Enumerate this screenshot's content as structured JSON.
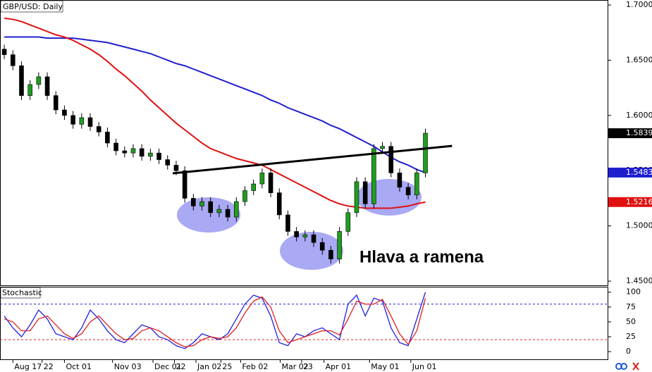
{
  "chart_data": [
    {
      "type": "candlestick",
      "title": "GBP/USD: Daily",
      "open": [
        1.66,
        1.655,
        1.645,
        1.618,
        1.628,
        1.635,
        1.618,
        1.605,
        1.6,
        1.592,
        1.598,
        1.59,
        1.585,
        1.575,
        1.568,
        1.566,
        1.57,
        1.563,
        1.566,
        1.56,
        1.555,
        1.55,
        1.525,
        1.518,
        1.522,
        1.512,
        1.515,
        1.508,
        1.522,
        1.532,
        1.538,
        1.548,
        1.53,
        1.51,
        1.495,
        1.49,
        1.492,
        1.485,
        1.478,
        1.47,
        1.495,
        1.512,
        1.54,
        1.52,
        1.57,
        1.572,
        1.548,
        1.535,
        1.528,
        1.548
      ],
      "high": [
        1.664,
        1.659,
        1.649,
        1.632,
        1.639,
        1.639,
        1.622,
        1.609,
        1.604,
        1.602,
        1.602,
        1.594,
        1.589,
        1.579,
        1.572,
        1.574,
        1.574,
        1.57,
        1.57,
        1.564,
        1.559,
        1.554,
        1.529,
        1.526,
        1.526,
        1.519,
        1.519,
        1.526,
        1.536,
        1.542,
        1.552,
        1.552,
        1.534,
        1.514,
        1.499,
        1.496,
        1.496,
        1.489,
        1.482,
        1.499,
        1.516,
        1.544,
        1.544,
        1.574,
        1.576,
        1.576,
        1.552,
        1.539,
        1.552,
        1.588
      ],
      "low": [
        1.651,
        1.641,
        1.614,
        1.614,
        1.624,
        1.614,
        1.601,
        1.596,
        1.588,
        1.588,
        1.586,
        1.581,
        1.571,
        1.564,
        1.562,
        1.562,
        1.559,
        1.559,
        1.556,
        1.551,
        1.546,
        1.521,
        1.514,
        1.514,
        1.508,
        1.508,
        1.504,
        1.504,
        1.518,
        1.528,
        1.534,
        1.526,
        1.506,
        1.491,
        1.486,
        1.486,
        1.481,
        1.474,
        1.466,
        1.466,
        1.491,
        1.508,
        1.516,
        1.516,
        1.566,
        1.544,
        1.531,
        1.524,
        1.524,
        1.544
      ],
      "close": [
        1.655,
        1.645,
        1.618,
        1.628,
        1.635,
        1.618,
        1.605,
        1.6,
        1.592,
        1.598,
        1.59,
        1.585,
        1.575,
        1.568,
        1.566,
        1.57,
        1.563,
        1.566,
        1.56,
        1.555,
        1.55,
        1.525,
        1.518,
        1.522,
        1.512,
        1.515,
        1.508,
        1.522,
        1.532,
        1.538,
        1.548,
        1.53,
        1.51,
        1.495,
        1.49,
        1.492,
        1.485,
        1.478,
        1.47,
        1.495,
        1.512,
        1.54,
        1.52,
        1.57,
        1.572,
        1.548,
        1.535,
        1.528,
        1.548,
        1.5839
      ],
      "up_color": "#1f9e1f",
      "down_color": "#000000",
      "overlays": [
        {
          "color": "#1f1fd0",
          "values": [
            1.671,
            1.671,
            1.671,
            1.671,
            1.671,
            1.67,
            1.67,
            1.67,
            1.67,
            1.669,
            1.668,
            1.667,
            1.666,
            1.664,
            1.662,
            1.66,
            1.658,
            1.656,
            1.653,
            1.65,
            1.647,
            1.645,
            1.642,
            1.639,
            1.636,
            1.633,
            1.63,
            1.627,
            1.624,
            1.621,
            1.618,
            1.614,
            1.611,
            1.607,
            1.604,
            1.601,
            1.598,
            1.595,
            1.591,
            1.588,
            1.584,
            1.58,
            1.576,
            1.572,
            1.567,
            1.562,
            1.558,
            1.555,
            1.551,
            1.5483
          ]
        },
        {
          "color": "#e01010",
          "values": [
            1.688,
            1.687,
            1.685,
            1.682,
            1.679,
            1.676,
            1.673,
            1.671,
            1.668,
            1.664,
            1.66,
            1.655,
            1.649,
            1.642,
            1.636,
            1.629,
            1.622,
            1.614,
            1.607,
            1.6,
            1.593,
            1.587,
            1.581,
            1.575,
            1.57,
            1.567,
            1.564,
            1.561,
            1.559,
            1.557,
            1.555,
            1.551,
            1.547,
            1.543,
            1.539,
            1.535,
            1.531,
            1.527,
            1.523,
            1.52,
            1.518,
            1.517,
            1.516,
            1.516,
            1.516,
            1.516,
            1.517,
            1.518,
            1.52,
            1.5216
          ]
        }
      ],
      "neckline": {
        "x": [
          19.6,
          52.1
        ],
        "y": [
          1.5476,
          1.5724
        ]
      },
      "annotation": "Hlava a ramena",
      "xlim": [
        -0.5,
        70.2
      ],
      "ylim": [
        1.4462,
        1.7045
      ],
      "yticks": [
        {
          "value": 1.7,
          "label": "1.7000"
        },
        {
          "value": 1.65,
          "label": "1.6500"
        },
        {
          "value": 1.6,
          "label": "1.6000"
        },
        {
          "value": 1.55,
          "label": "1.5500"
        },
        {
          "value": 1.5,
          "label": "1.5000"
        },
        {
          "value": 1.45,
          "label": "1.4500"
        }
      ],
      "xticks": [
        {
          "value": 1,
          "label": "Aug 17"
        },
        {
          "value": 4.4,
          "label": "22"
        },
        {
          "value": 7,
          "label": "Oct 01"
        },
        {
          "value": 12.6,
          "label": "Nov 03"
        },
        {
          "value": 17.3,
          "label": "Dec 01"
        },
        {
          "value": 19.8,
          "label": "22"
        },
        {
          "value": 22.3,
          "label": "Jan 02"
        },
        {
          "value": 25.2,
          "label": "25"
        },
        {
          "value": 27.5,
          "label": "Feb 02"
        },
        {
          "value": 32.1,
          "label": "Mar 02"
        },
        {
          "value": 34.6,
          "label": "23"
        },
        {
          "value": 37.2,
          "label": "Apr 01"
        },
        {
          "value": 42.5,
          "label": "May 01"
        },
        {
          "value": 47.3,
          "label": "Jun 01"
        }
      ]
    },
    {
      "type": "line",
      "title": "Stochastic",
      "series": [
        {
          "color": "#2020e0",
          "values": [
            60,
            40,
            25,
            45,
            70,
            55,
            30,
            25,
            20,
            40,
            70,
            55,
            35,
            20,
            15,
            30,
            45,
            40,
            25,
            20,
            10,
            5,
            15,
            30,
            25,
            20,
            30,
            55,
            80,
            95,
            90,
            60,
            15,
            10,
            30,
            25,
            35,
            40,
            30,
            20,
            80,
            95,
            60,
            90,
            85,
            40,
            15,
            10,
            55,
            100
          ]
        },
        {
          "color": "#e02020",
          "values": [
            55,
            50,
            35,
            35,
            55,
            60,
            45,
            30,
            22,
            30,
            50,
            60,
            45,
            30,
            20,
            22,
            35,
            40,
            35,
            25,
            15,
            8,
            10,
            20,
            25,
            22,
            25,
            40,
            65,
            85,
            92,
            75,
            35,
            15,
            20,
            25,
            30,
            35,
            35,
            28,
            55,
            85,
            80,
            80,
            88,
            60,
            30,
            12,
            35,
            90
          ]
        }
      ],
      "levels": [
        {
          "value": 80,
          "color": "#2020e0"
        },
        {
          "value": 20,
          "color": "#e02020"
        }
      ],
      "xlim": [
        -0.5,
        70.2
      ],
      "ylim": [
        -13,
        108
      ],
      "yticks": [
        100,
        75,
        50,
        25,
        0
      ]
    }
  ]
}
